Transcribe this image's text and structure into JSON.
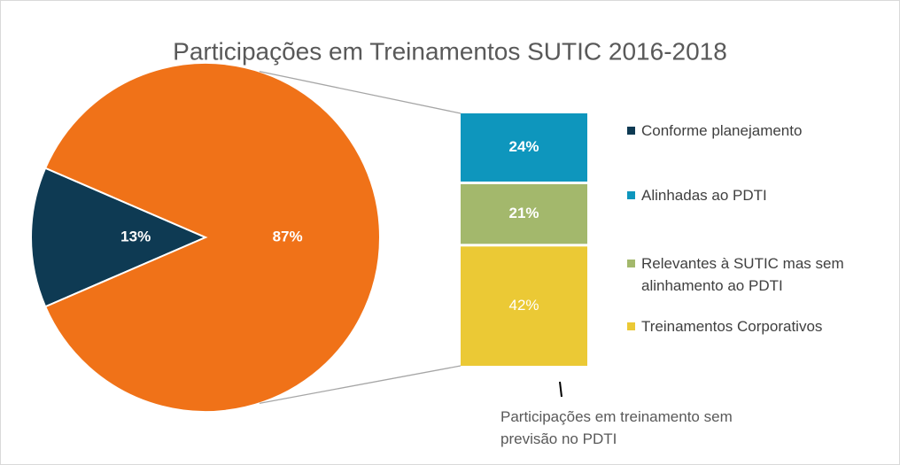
{
  "chart_data": {
    "type": "pie",
    "title": "Participações em Treinamentos SUTIC 2016-2018",
    "categories": [
      "Conforme planejamento",
      null
    ],
    "values": [
      13,
      87
    ],
    "value_labels": [
      "13%",
      "87%"
    ],
    "colors": [
      "#0e3a53",
      "#f07218"
    ],
    "breakdown": {
      "categories": [
        "Alinhadas ao PDTI",
        "Relevantes à SUTIC mas sem alinhamento ao PDTI",
        "Treinamentos Corporativos"
      ],
      "values": [
        24,
        21,
        42
      ],
      "value_labels": [
        "24%",
        "21%",
        "42%"
      ],
      "colors": [
        "#0e96bd",
        "#a3b86c",
        "#ebc935"
      ]
    },
    "annotation": "Participações em treinamento sem previsão no PDTI"
  }
}
